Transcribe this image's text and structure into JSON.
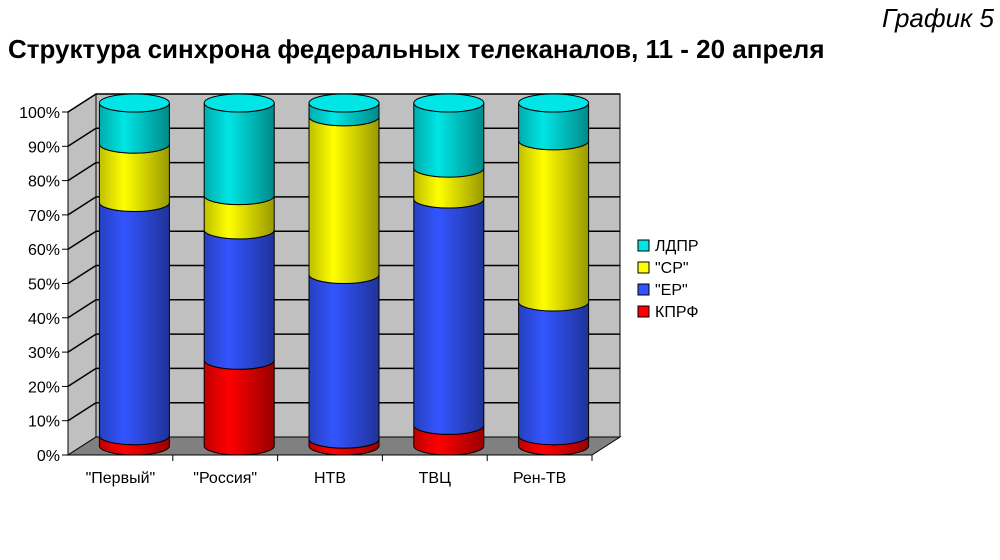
{
  "header": {
    "subtitle": "График 5",
    "title": "Структура синхрона федеральных телеканалов, 11 - 20 апреля"
  },
  "chart_data": {
    "type": "bar",
    "stacked": true,
    "percent": true,
    "style": "3d-cylinder",
    "categories": [
      "\"Первый\"",
      "\"Россия\"",
      "НТВ",
      "ТВЦ",
      "Рен-ТВ"
    ],
    "series": [
      {
        "name": "КПРФ",
        "color": "#ff0000",
        "values": [
          3,
          25,
          2,
          6,
          3
        ]
      },
      {
        "name": "\"ЕР\"",
        "color": "#3355ff",
        "values": [
          68,
          38,
          48,
          66,
          39
        ]
      },
      {
        "name": "\"СР\"",
        "color": "#ffff00",
        "values": [
          17,
          10,
          46,
          9,
          47
        ]
      },
      {
        "name": "ЛДПР",
        "color": "#00e5e5",
        "values": [
          12,
          27,
          4,
          19,
          11
        ]
      }
    ],
    "yticks": [
      "0%",
      "10%",
      "20%",
      "30%",
      "40%",
      "50%",
      "60%",
      "70%",
      "80%",
      "90%",
      "100%"
    ],
    "ylim": [
      0,
      100
    ],
    "grid": true,
    "legend_position": "right",
    "legend_order": [
      "ЛДПР",
      "\"СР\"",
      "\"ЕР\"",
      "КПРФ"
    ],
    "wall_color": "#c0c0c0",
    "floor_color": "#808080"
  }
}
